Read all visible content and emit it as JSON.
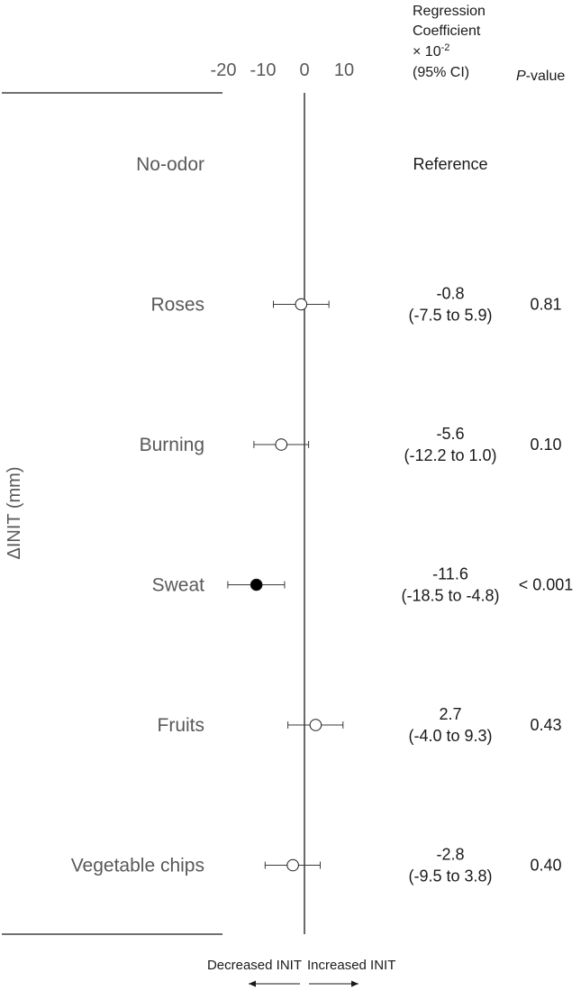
{
  "chart_data": {
    "type": "forest",
    "ylabel": "ΔINIT (mm)",
    "xlim": [
      -25,
      15
    ],
    "x_ticks": [
      "-20",
      "-10",
      "0",
      "10"
    ],
    "x_tick_values": [
      -20,
      -10,
      0,
      10
    ],
    "reference_line": 0,
    "column_headers": {
      "coef_line1": "Regression",
      "coef_line2": "Coefficient",
      "coef_line3_prefix": "× 10",
      "coef_line3_exp": "-2",
      "coef_line4": "(95% CI)",
      "p_italic": "P",
      "p_rest": "-value"
    },
    "direction": {
      "left": "Decreased INIT",
      "right": "Increased INIT"
    },
    "rows": [
      {
        "label": "No-odor",
        "coef": "Reference",
        "ci": "",
        "p": "",
        "estimate": null,
        "lower": null,
        "upper": null,
        "significant": false
      },
      {
        "label": "Roses",
        "coef": "-0.8",
        "ci": "(-7.5 to 5.9)",
        "p": "0.81",
        "estimate": -0.8,
        "lower": -7.5,
        "upper": 5.9,
        "significant": false
      },
      {
        "label": "Burning",
        "coef": "-5.6",
        "ci": "(-12.2 to 1.0)",
        "p": "0.10",
        "estimate": -5.6,
        "lower": -12.2,
        "upper": 1.0,
        "significant": false
      },
      {
        "label": "Sweat",
        "coef": "-11.6",
        "ci": "(-18.5 to -4.8)",
        "p": "< 0.001",
        "estimate": -11.6,
        "lower": -18.5,
        "upper": -4.8,
        "significant": true
      },
      {
        "label": "Fruits",
        "coef": "2.7",
        "ci": "(-4.0 to 9.3)",
        "p": "0.43",
        "estimate": 2.7,
        "lower": -4.0,
        "upper": 9.3,
        "significant": false
      },
      {
        "label": "Vegetable chips",
        "coef": "-2.8",
        "ci": "(-9.5 to 3.8)",
        "p": "0.40",
        "estimate": -2.8,
        "lower": -9.5,
        "upper": 3.8,
        "significant": false
      }
    ]
  }
}
